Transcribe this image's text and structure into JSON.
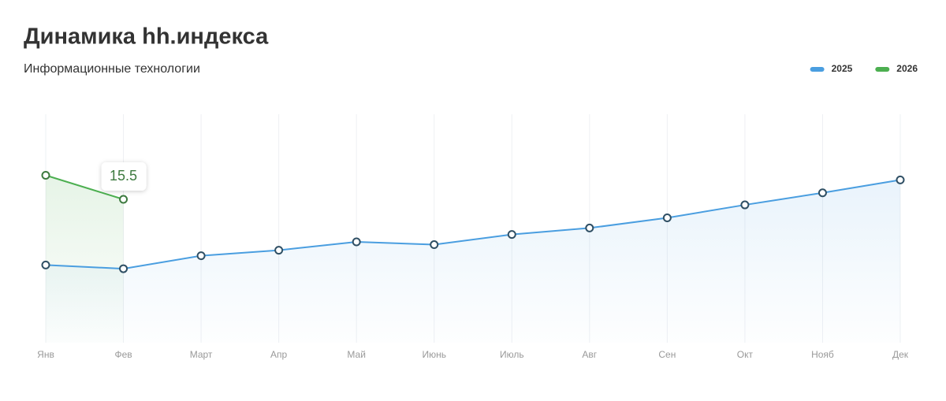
{
  "chart_data": {
    "type": "line",
    "title": "Динамика hh.индекса",
    "subtitle": "Информационные технологии",
    "categories": [
      "Янв",
      "Фев",
      "Март",
      "Апр",
      "Май",
      "Июнь",
      "Июль",
      "Авг",
      "Сен",
      "Окт",
      "Нояб",
      "Дек"
    ],
    "series": [
      {
        "name": "2025",
        "color": "#4a9ee0",
        "values": [
          8.4,
          8.0,
          9.4,
          10.0,
          10.9,
          10.6,
          11.7,
          12.4,
          13.5,
          14.9,
          16.2,
          17.6
        ]
      },
      {
        "name": "2026",
        "color": "#4caf50",
        "values": [
          18.1,
          15.5,
          null,
          null,
          null,
          null,
          null,
          null,
          null,
          null,
          null,
          null
        ]
      }
    ],
    "ylim": [
      0,
      24.7
    ],
    "grid": true,
    "legend": "top-right"
  }
}
